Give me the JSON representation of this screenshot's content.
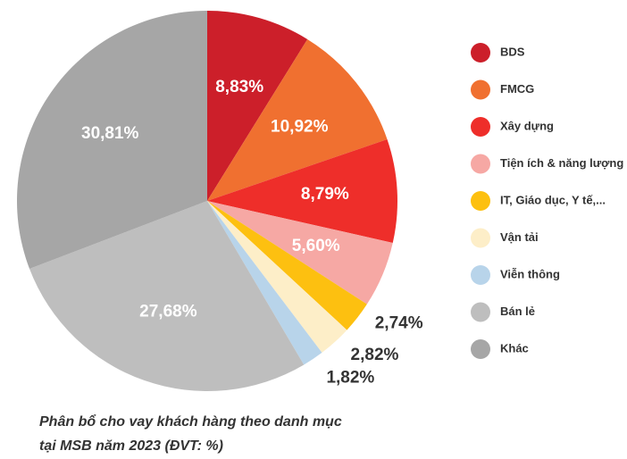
{
  "chart_data": {
    "type": "pie",
    "categories": [
      "BDS",
      "FMCG",
      "Xây dựng",
      "Tiện ích & năng lượng",
      "IT, Giáo dục, Y tế,...",
      "Vận tải",
      "Viễn thông",
      "Bán lẻ",
      "Khác"
    ],
    "values": [
      8.83,
      10.92,
      8.79,
      5.6,
      2.74,
      2.82,
      1.82,
      27.68,
      30.81
    ],
    "value_labels": [
      "8,83%",
      "10,92%",
      "8,79%",
      "5,60%",
      "2,74%",
      "2,82%",
      "1,82%",
      "27,68%",
      "30,81%"
    ],
    "colors": [
      "#cc1f2a",
      "#f07030",
      "#ee2e2a",
      "#f6a8a4",
      "#fdc010",
      "#fdeec8",
      "#b8d4ea",
      "#bebebe",
      "#a6a6a6"
    ],
    "caption": [
      "Phân bổ cho vay khách hàng theo danh mục",
      "tại MSB năm 2023 (ĐVT: %)"
    ],
    "legend": "right"
  }
}
